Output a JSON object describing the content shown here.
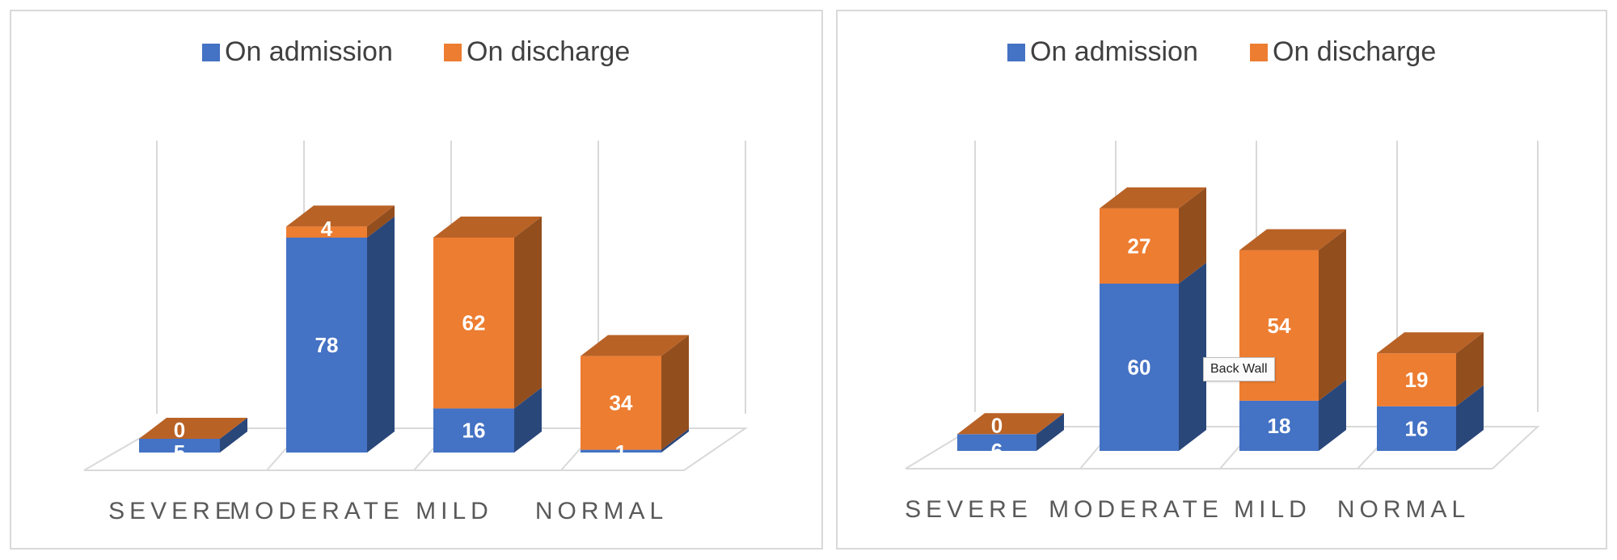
{
  "colors": {
    "admission": "#4472c4",
    "discharge": "#ed7d31",
    "grid": "#d9d9d9"
  },
  "tooltip": {
    "text": "Back Wall"
  },
  "chart_data": [
    {
      "type": "bar",
      "stacked": true,
      "three_d": true,
      "legend_position": "top",
      "categories": [
        "SEVERE",
        "MODERATE",
        "MILD",
        "NORMAL"
      ],
      "series": [
        {
          "name": "On admission",
          "values": [
            5,
            78,
            16,
            1
          ]
        },
        {
          "name": "On discharge",
          "values": [
            0,
            4,
            62,
            34
          ]
        }
      ],
      "ylim": [
        0,
        85
      ]
    },
    {
      "type": "bar",
      "stacked": true,
      "three_d": true,
      "legend_position": "top",
      "categories": [
        "SEVERE",
        "MODERATE",
        "MILD",
        "NORMAL"
      ],
      "series": [
        {
          "name": "On admission",
          "values": [
            6,
            60,
            18,
            16
          ]
        },
        {
          "name": "On discharge",
          "values": [
            0,
            27,
            54,
            19
          ]
        }
      ],
      "ylim": [
        0,
        85
      ]
    }
  ]
}
